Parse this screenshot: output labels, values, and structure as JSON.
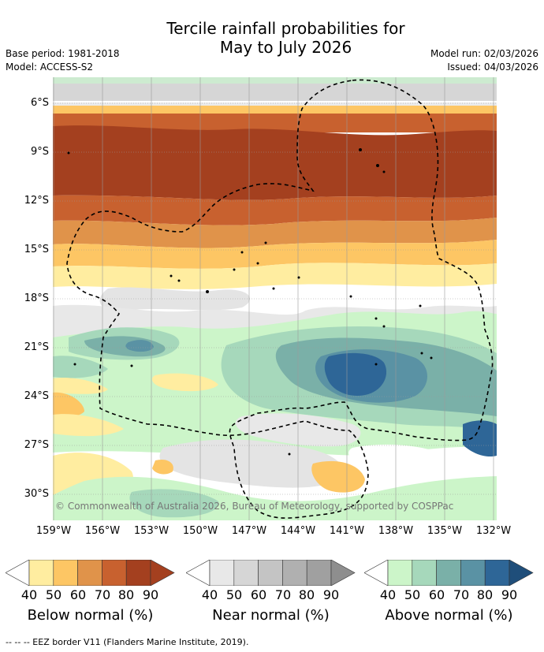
{
  "title_line1": "Tercile rainfall probabilities for",
  "title_line2": "May to July 2026",
  "base_period": "Base period: 1981-2018",
  "model": "Model: ACCESS-S2",
  "model_run": "Model run: 02/03/2026",
  "issued": "Issued: 04/03/2026",
  "latitudes": [
    "6°S",
    "9°S",
    "12°S",
    "15°S",
    "18°S",
    "21°S",
    "24°S",
    "27°S",
    "30°S"
  ],
  "longitudes": [
    "159°W",
    "156°W",
    "153°W",
    "150°W",
    "147°W",
    "144°W",
    "141°W",
    "138°W",
    "135°W",
    "132°W"
  ],
  "copyright": "© Commonwealth of Australia 2026, Bureau of Meteorology, supported by COSPPac",
  "legend": {
    "ticks": [
      "40",
      "50",
      "60",
      "70",
      "80",
      "90"
    ],
    "below": {
      "label": "Below normal (%)",
      "colors": [
        "#ffffff",
        "#ffeda0",
        "#fdc664",
        "#e0934a",
        "#c8612f",
        "#a4401f"
      ]
    },
    "near": {
      "label": "Near normal (%)",
      "colors": [
        "#ffffff",
        "#e8e8e8",
        "#d6d6d6",
        "#c4c4c4",
        "#b0b0b0",
        "#8e8e8e"
      ]
    },
    "above": {
      "label": "Above normal (%)",
      "colors": [
        "#ffffff",
        "#ccf5c9",
        "#a6d8bb",
        "#7ab0a8",
        "#5a92a4",
        "#2e6697"
      ]
    }
  },
  "footnote": "-- -- -- EEZ border V11 (Flanders Marine Institute, 2019)."
}
